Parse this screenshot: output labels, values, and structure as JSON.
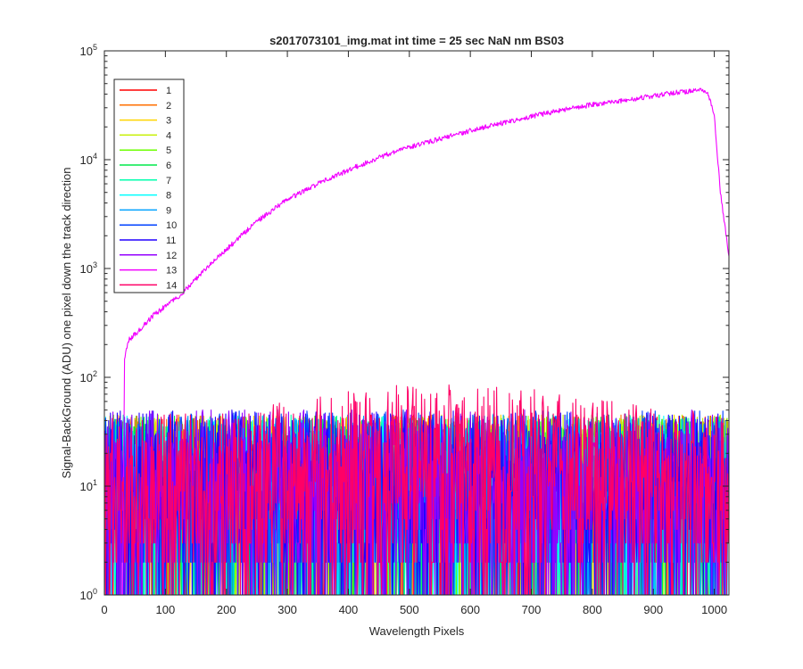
{
  "chart_data": {
    "type": "line",
    "title": "s2017073101_img.mat int time = 25 sec  NaN nm BS03",
    "xlabel": "Wavelength Pixels",
    "ylabel": "Signal-BackGround (ADU) one pixel down the track direction",
    "xlim": [
      0,
      1024
    ],
    "ylim": [
      1,
      100000
    ],
    "yscale": "log",
    "grid": false,
    "legend_position": "top-left",
    "x_ticks": [
      "0",
      "100",
      "200",
      "300",
      "400",
      "500",
      "600",
      "700",
      "800",
      "900",
      "1000"
    ],
    "x_tick_values": [
      0,
      100,
      200,
      300,
      400,
      500,
      600,
      700,
      800,
      900,
      1000
    ],
    "y_ticks": [
      {
        "base": "10",
        "exp": "0",
        "value": 1
      },
      {
        "base": "10",
        "exp": "1",
        "value": 10
      },
      {
        "base": "10",
        "exp": "2",
        "value": 100
      },
      {
        "base": "10",
        "exp": "3",
        "value": 1000
      },
      {
        "base": "10",
        "exp": "4",
        "value": 10000
      },
      {
        "base": "10",
        "exp": "5",
        "value": 100000
      }
    ],
    "noise_series_x_range": [
      0,
      1023
    ],
    "series": [
      {
        "name": "1",
        "color": "#ff0000",
        "kind": "noise",
        "typical_max": 45
      },
      {
        "name": "2",
        "color": "#ff6f00",
        "kind": "noise",
        "typical_max": 45
      },
      {
        "name": "3",
        "color": "#ffd400",
        "kind": "noise",
        "typical_max": 45
      },
      {
        "name": "4",
        "color": "#c6f000",
        "kind": "noise",
        "typical_max": 45
      },
      {
        "name": "5",
        "color": "#6cff00",
        "kind": "noise",
        "typical_max": 45
      },
      {
        "name": "6",
        "color": "#00e84a",
        "kind": "noise",
        "typical_max": 45
      },
      {
        "name": "7",
        "color": "#00ffae",
        "kind": "noise",
        "typical_max": 45
      },
      {
        "name": "8",
        "color": "#00ffff",
        "kind": "noise",
        "typical_max": 45
      },
      {
        "name": "9",
        "color": "#00a2ff",
        "kind": "noise",
        "typical_max": 45
      },
      {
        "name": "10",
        "color": "#0041ff",
        "kind": "noise",
        "typical_max": 50
      },
      {
        "name": "11",
        "color": "#2200ff",
        "kind": "noise",
        "typical_max": 50
      },
      {
        "name": "12",
        "color": "#9400ff",
        "kind": "noise",
        "typical_max": 50
      },
      {
        "name": "13",
        "color": "#f200ff",
        "kind": "line",
        "x": [
          0,
          30,
          33,
          40,
          60,
          80,
          100,
          125,
          150,
          175,
          200,
          250,
          300,
          350,
          400,
          450,
          500,
          550,
          600,
          650,
          700,
          750,
          800,
          850,
          900,
          940,
          970,
          980,
          990,
          1000,
          1010,
          1024
        ],
        "y": [
          1,
          1,
          150,
          220,
          280,
          370,
          450,
          570,
          800,
          1100,
          1500,
          2700,
          4300,
          6000,
          8000,
          10500,
          13000,
          15500,
          18500,
          21500,
          25000,
          28500,
          32000,
          35000,
          38500,
          41500,
          43000,
          43000,
          40000,
          25000,
          5000,
          1300
        ]
      },
      {
        "name": "14",
        "color": "#ff0066",
        "kind": "noise",
        "typical_max": 80
      }
    ]
  }
}
